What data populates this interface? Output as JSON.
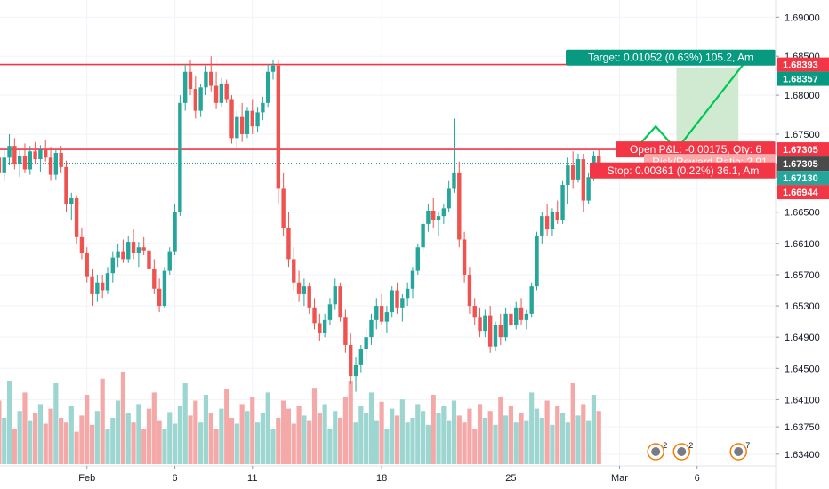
{
  "chart_data": {
    "type": "candlestick",
    "y_axis": {
      "ticks": [
        "1.69000",
        "1.68500",
        "1.68000",
        "1.67500",
        "1.66500",
        "1.66100",
        "1.65700",
        "1.65300",
        "1.64900",
        "1.64500",
        "1.64100",
        "1.63750",
        "1.63400"
      ],
      "tick_values": [
        1.69,
        1.685,
        1.68,
        1.675,
        1.665,
        1.661,
        1.657,
        1.653,
        1.649,
        1.645,
        1.641,
        1.6375,
        1.634
      ],
      "range": [
        1.6325,
        1.6922
      ]
    },
    "x_axis": {
      "ticks": [
        "Feb",
        "6",
        "11",
        "18",
        "25",
        "Mar",
        "6"
      ],
      "tick_index": [
        17,
        34,
        49,
        74,
        99,
        120,
        135
      ],
      "n_slots": 150
    },
    "price_tags": [
      {
        "label": "1.68393",
        "value": 1.68393,
        "color": "#f23645"
      },
      {
        "label": "1.68357",
        "value": 1.68357,
        "color": "#089981"
      },
      {
        "label": "1.67305",
        "value": 1.67305,
        "color": "#f23645"
      },
      {
        "label": "1.67305",
        "value": 1.67305,
        "color": "#4a4a4a",
        "offset": 1
      },
      {
        "label": "1.67130",
        "value": 1.6713,
        "color": "#26a69a"
      },
      {
        "label": "1.66944",
        "value": 1.66944,
        "color": "#f23645"
      }
    ],
    "horizontal_lines": [
      {
        "value": 1.68393,
        "color": "#f23645"
      },
      {
        "value": 1.67305,
        "color": "#f23645"
      }
    ],
    "current_price": 1.6713,
    "position": {
      "entry": 1.67305,
      "target": 1.68357,
      "stop": 1.66944,
      "start_index": 131,
      "end_index": 143
    },
    "labels": {
      "target": "Target: 0.01052 (0.63%) 105.2, Am",
      "pnl": "Open P&L: -0.00175, Qty: 6",
      "rr": "Risk/Reward Ratio: 2.91",
      "stop": "Stop: 0.00361 (0.22%) 36.1, Am"
    },
    "projection": [
      [
        123,
        1.67305
      ],
      [
        127,
        1.676
      ],
      [
        131,
        1.673
      ],
      [
        144,
        1.684
      ]
    ],
    "event_badges": [
      {
        "index": 127,
        "label": "2"
      },
      {
        "index": 132,
        "label": "2"
      },
      {
        "index": 143,
        "label": "7"
      }
    ],
    "candles": [
      [
        1.672,
        1.674,
        1.668,
        1.67
      ],
      [
        1.67,
        1.673,
        1.669,
        1.672
      ],
      [
        1.672,
        1.675,
        1.671,
        1.6735
      ],
      [
        1.6735,
        1.6745,
        1.6705,
        1.6712
      ],
      [
        1.6712,
        1.673,
        1.6695,
        1.6722
      ],
      [
        1.6722,
        1.6738,
        1.67,
        1.6705
      ],
      [
        1.6705,
        1.6735,
        1.6698,
        1.6728
      ],
      [
        1.6728,
        1.674,
        1.6712,
        1.6718
      ],
      [
        1.6718,
        1.6736,
        1.6702,
        1.673
      ],
      [
        1.673,
        1.6742,
        1.6715,
        1.672
      ],
      [
        1.672,
        1.6734,
        1.669,
        1.6698
      ],
      [
        1.6698,
        1.673,
        1.6692,
        1.6726
      ],
      [
        1.6726,
        1.6735,
        1.67,
        1.6708
      ],
      [
        1.6708,
        1.6716,
        1.665,
        1.666
      ],
      [
        1.666,
        1.6675,
        1.664,
        1.6668
      ],
      [
        1.6668,
        1.6672,
        1.661,
        1.6618
      ],
      [
        1.6618,
        1.663,
        1.659,
        1.6598
      ],
      [
        1.6598,
        1.6605,
        1.656,
        1.6568
      ],
      [
        1.6568,
        1.6578,
        1.653,
        1.6545
      ],
      [
        1.6545,
        1.657,
        1.6535,
        1.656
      ],
      [
        1.656,
        1.657,
        1.654,
        1.655
      ],
      [
        1.655,
        1.658,
        1.6545,
        1.6572
      ],
      [
        1.6572,
        1.66,
        1.656,
        1.6592
      ],
      [
        1.6592,
        1.661,
        1.658,
        1.66
      ],
      [
        1.66,
        1.6615,
        1.6585,
        1.659
      ],
      [
        1.659,
        1.662,
        1.6585,
        1.6612
      ],
      [
        1.6612,
        1.6628,
        1.659,
        1.6598
      ],
      [
        1.6598,
        1.6612,
        1.658,
        1.6605
      ],
      [
        1.6605,
        1.6618,
        1.6595,
        1.6601
      ],
      [
        1.6601,
        1.6607,
        1.657,
        1.6578
      ],
      [
        1.6578,
        1.659,
        1.6545,
        1.6552
      ],
      [
        1.6552,
        1.6565,
        1.6522,
        1.653
      ],
      [
        1.653,
        1.658,
        1.6528,
        1.6575
      ],
      [
        1.6575,
        1.6605,
        1.657,
        1.66
      ],
      [
        1.66,
        1.666,
        1.6595,
        1.665
      ],
      [
        1.665,
        1.68,
        1.6645,
        1.679
      ],
      [
        1.679,
        1.684,
        1.678,
        1.683
      ],
      [
        1.683,
        1.6845,
        1.68,
        1.6808
      ],
      [
        1.6808,
        1.6825,
        1.677,
        1.678
      ],
      [
        1.678,
        1.6815,
        1.6772,
        1.681
      ],
      [
        1.681,
        1.6838,
        1.68,
        1.683
      ],
      [
        1.683,
        1.685,
        1.6805,
        1.6812
      ],
      [
        1.6812,
        1.683,
        1.6782,
        1.679
      ],
      [
        1.679,
        1.6822,
        1.6785,
        1.6815
      ],
      [
        1.6815,
        1.682,
        1.679,
        1.6795
      ],
      [
        1.6795,
        1.68,
        1.6738,
        1.6745
      ],
      [
        1.6745,
        1.678,
        1.673,
        1.6772
      ],
      [
        1.6772,
        1.679,
        1.674,
        1.675
      ],
      [
        1.675,
        1.6785,
        1.6745,
        1.678
      ],
      [
        1.678,
        1.6795,
        1.675,
        1.676
      ],
      [
        1.676,
        1.6785,
        1.6752,
        1.6778
      ],
      [
        1.6778,
        1.6798,
        1.6768,
        1.679
      ],
      [
        1.679,
        1.684,
        1.6785,
        1.683
      ],
      [
        1.683,
        1.6845,
        1.682,
        1.6838
      ],
      [
        1.6838,
        1.6845,
        1.666,
        1.668
      ],
      [
        1.668,
        1.67,
        1.662,
        1.663
      ],
      [
        1.663,
        1.665,
        1.658,
        1.659
      ],
      [
        1.659,
        1.6605,
        1.655,
        1.656
      ],
      [
        1.656,
        1.6575,
        1.6535,
        1.6545
      ],
      [
        1.6545,
        1.6565,
        1.653,
        1.6555
      ],
      [
        1.6555,
        1.656,
        1.652,
        1.6528
      ],
      [
        1.6528,
        1.654,
        1.65,
        1.6508
      ],
      [
        1.6508,
        1.652,
        1.6485,
        1.6495
      ],
      [
        1.6495,
        1.652,
        1.649,
        1.6512
      ],
      [
        1.6512,
        1.654,
        1.6505,
        1.6532
      ],
      [
        1.6532,
        1.6565,
        1.6525,
        1.6555
      ],
      [
        1.6555,
        1.656,
        1.651,
        1.6515
      ],
      [
        1.6515,
        1.6525,
        1.647,
        1.648
      ],
      [
        1.648,
        1.6495,
        1.643,
        1.644
      ],
      [
        1.644,
        1.6465,
        1.642,
        1.6455
      ],
      [
        1.6455,
        1.648,
        1.6445,
        1.6475
      ],
      [
        1.6475,
        1.65,
        1.646,
        1.649
      ],
      [
        1.649,
        1.652,
        1.648,
        1.6512
      ],
      [
        1.6512,
        1.654,
        1.65,
        1.653
      ],
      [
        1.653,
        1.6545,
        1.6505,
        1.651
      ],
      [
        1.651,
        1.653,
        1.6495,
        1.6522
      ],
      [
        1.6522,
        1.6555,
        1.6515,
        1.655
      ],
      [
        1.655,
        1.656,
        1.652,
        1.6528
      ],
      [
        1.6528,
        1.6545,
        1.651,
        1.654
      ],
      [
        1.654,
        1.656,
        1.653,
        1.6552
      ],
      [
        1.6552,
        1.658,
        1.654,
        1.6575
      ],
      [
        1.6575,
        1.661,
        1.657,
        1.6605
      ],
      [
        1.6605,
        1.664,
        1.66,
        1.6635
      ],
      [
        1.6635,
        1.666,
        1.6625,
        1.6652
      ],
      [
        1.6652,
        1.6668,
        1.663,
        1.664
      ],
      [
        1.664,
        1.665,
        1.662,
        1.6645
      ],
      [
        1.6645,
        1.666,
        1.6635,
        1.6655
      ],
      [
        1.6655,
        1.669,
        1.665,
        1.668
      ],
      [
        1.668,
        1.677,
        1.6675,
        1.67
      ],
      [
        1.67,
        1.6715,
        1.6605,
        1.6615
      ],
      [
        1.6615,
        1.6625,
        1.656,
        1.657
      ],
      [
        1.657,
        1.658,
        1.652,
        1.653
      ],
      [
        1.653,
        1.654,
        1.6505,
        1.6515
      ],
      [
        1.6515,
        1.6528,
        1.649,
        1.6498
      ],
      [
        1.6498,
        1.6525,
        1.649,
        1.6518
      ],
      [
        1.6518,
        1.653,
        1.647,
        1.6478
      ],
      [
        1.6478,
        1.651,
        1.6472,
        1.6505
      ],
      [
        1.6505,
        1.652,
        1.648,
        1.649
      ],
      [
        1.649,
        1.6528,
        1.6485,
        1.652
      ],
      [
        1.652,
        1.6532,
        1.6498,
        1.6505
      ],
      [
        1.6505,
        1.6535,
        1.65,
        1.6528
      ],
      [
        1.6528,
        1.654,
        1.6505,
        1.6512
      ],
      [
        1.6512,
        1.6525,
        1.65,
        1.652
      ],
      [
        1.652,
        1.656,
        1.6515,
        1.6555
      ],
      [
        1.6555,
        1.6625,
        1.655,
        1.662
      ],
      [
        1.662,
        1.665,
        1.661,
        1.6645
      ],
      [
        1.6645,
        1.666,
        1.662,
        1.6628
      ],
      [
        1.6628,
        1.6655,
        1.662,
        1.665
      ],
      [
        1.665,
        1.6665,
        1.6635,
        1.664
      ],
      [
        1.664,
        1.669,
        1.6635,
        1.6685
      ],
      [
        1.6685,
        1.672,
        1.666,
        1.671
      ],
      [
        1.671,
        1.6728,
        1.668,
        1.6692
      ],
      [
        1.6692,
        1.6725,
        1.6688,
        1.6718
      ],
      [
        1.6718,
        1.6725,
        1.665,
        1.6665
      ],
      [
        1.6665,
        1.67,
        1.666,
        1.6695
      ],
      [
        1.6695,
        1.6728,
        1.669,
        1.6722
      ],
      [
        1.6722,
        1.673,
        1.67,
        1.6713
      ]
    ],
    "volumes": [
      0.55,
      0.4,
      0.72,
      0.3,
      0.46,
      0.62,
      0.38,
      0.44,
      0.52,
      0.35,
      0.48,
      0.7,
      0.4,
      0.36,
      0.5,
      0.28,
      0.42,
      0.6,
      0.34,
      0.46,
      0.74,
      0.3,
      0.4,
      0.55,
      0.8,
      0.44,
      0.36,
      0.52,
      0.3,
      0.48,
      0.62,
      0.38,
      0.3,
      0.45,
      0.35,
      0.5,
      0.7,
      0.42,
      0.55,
      0.36,
      0.6,
      0.44,
      0.3,
      0.48,
      0.65,
      0.4,
      0.35,
      0.52,
      0.46,
      0.58,
      0.36,
      0.44,
      0.62,
      0.3,
      0.4,
      0.55,
      0.48,
      0.35,
      0.5,
      0.42,
      0.38,
      0.66,
      0.44,
      0.52,
      0.3,
      0.46,
      0.4,
      0.58,
      0.72,
      0.36,
      0.5,
      0.44,
      0.62,
      0.38,
      0.54,
      0.3,
      0.48,
      0.42,
      0.56,
      0.36,
      0.4,
      0.52,
      0.46,
      0.34,
      0.6,
      0.44,
      0.5,
      0.38,
      0.55,
      0.42,
      0.36,
      0.48,
      0.3,
      0.52,
      0.4,
      0.46,
      0.34,
      0.58,
      0.42,
      0.5,
      0.36,
      0.44,
      0.38,
      0.62,
      0.48,
      0.4,
      0.55,
      0.34,
      0.5,
      0.44,
      0.36,
      0.7,
      0.42,
      0.52,
      0.38,
      0.6,
      0.46
    ]
  }
}
